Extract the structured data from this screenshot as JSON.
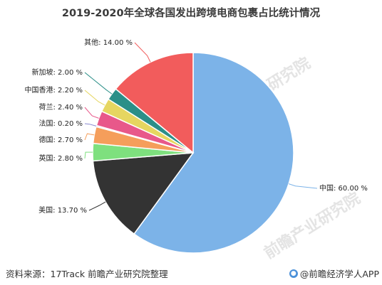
{
  "header": {
    "title": "2019-2020年全球各国发出跨境电商包裹占比统计情况"
  },
  "watermark": {
    "text": "前瞻产业研究院"
  },
  "footer": {
    "source": "资料来源：17Track 前瞻产业研究院整理",
    "brand": "@前瞻经济学人APP"
  },
  "chart_data": {
    "type": "pie",
    "title": "2019-2020年全球各国发出跨境电商包裹占比统计情况",
    "unit": "%",
    "slices": [
      {
        "name": "中国",
        "label": "中国: 60.00 %",
        "value": 60.0,
        "color": "#7cb3e8"
      },
      {
        "name": "美国",
        "label": "美国: 13.70 %",
        "value": 13.7,
        "color": "#333333"
      },
      {
        "name": "英国",
        "label": "英国: 2.80 %",
        "value": 2.8,
        "color": "#7ee07e"
      },
      {
        "name": "德国",
        "label": "德国: 2.70 %",
        "value": 2.7,
        "color": "#f59e5b"
      },
      {
        "name": "法国",
        "label": "法国: 0.20 %",
        "value": 0.2,
        "color": "#8a8ad0"
      },
      {
        "name": "荷兰",
        "label": "荷兰: 2.40 %",
        "value": 2.4,
        "color": "#e8588a"
      },
      {
        "name": "中国香港",
        "label": "中国香港: 2.20 %",
        "value": 2.2,
        "color": "#e6d660"
      },
      {
        "name": "新加坡",
        "label": "新加坡: 2.00 %",
        "value": 2.0,
        "color": "#2b8f88"
      },
      {
        "name": "其他",
        "label": "其他: 14.00 %",
        "value": 14.0,
        "color": "#f25c5c"
      }
    ]
  }
}
